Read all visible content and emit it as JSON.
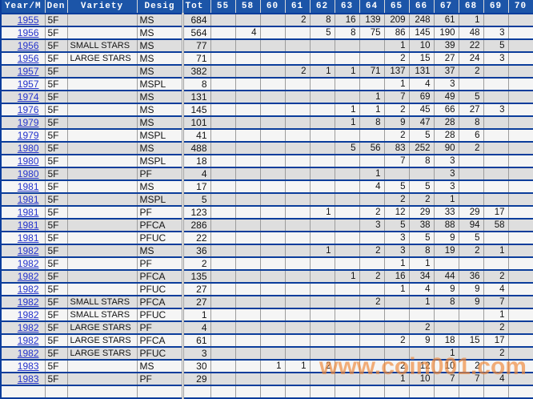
{
  "watermark": "www.coin001.com",
  "colors": {
    "header_bg": "#1C55A8",
    "separator": "#0B3D9B",
    "row_gray": "#DEDEDE",
    "row_white": "#F5F5F5",
    "grid_gray": "#9C9C9C",
    "link_blue": "#2433CC",
    "watermark_orange": "#F08A3C"
  },
  "table": {
    "columns": [
      "Year/M",
      "Den",
      "Variety",
      "Desig",
      "Tot",
      "55",
      "58",
      "60",
      "61",
      "62",
      "63",
      "64",
      "65",
      "66",
      "67",
      "68",
      "69",
      "70"
    ],
    "grade_columns": [
      "55",
      "58",
      "60",
      "61",
      "62",
      "63",
      "64",
      "65",
      "66",
      "67",
      "68",
      "69",
      "70"
    ],
    "rows": [
      {
        "year": "1955",
        "den": "5F",
        "variety": "",
        "desig": "MS",
        "tot": "684",
        "grades": {
          "61": "2",
          "62": "8",
          "63": "16",
          "64": "139",
          "65": "209",
          "66": "248",
          "67": "61",
          "68": "1"
        }
      },
      {
        "year": "1956",
        "den": "5F",
        "variety": "",
        "desig": "MS",
        "tot": "564",
        "grades": {
          "58": "4",
          "62": "5",
          "63": "8",
          "64": "75",
          "65": "86",
          "66": "145",
          "67": "190",
          "68": "48",
          "69": "3"
        }
      },
      {
        "year": "1956",
        "den": "5F",
        "variety": "SMALL STARS",
        "desig": "MS",
        "tot": "77",
        "grades": {
          "65": "1",
          "66": "10",
          "67": "39",
          "68": "22",
          "69": "5"
        }
      },
      {
        "year": "1956",
        "den": "5F",
        "variety": "LARGE STARS",
        "desig": "MS",
        "tot": "71",
        "grades": {
          "65": "2",
          "66": "15",
          "67": "27",
          "68": "24",
          "69": "3"
        }
      },
      {
        "year": "1957",
        "den": "5F",
        "variety": "",
        "desig": "MS",
        "tot": "382",
        "grades": {
          "61": "2",
          "62": "1",
          "63": "1",
          "64": "71",
          "65": "137",
          "66": "131",
          "67": "37",
          "68": "2"
        }
      },
      {
        "year": "1957",
        "den": "5F",
        "variety": "",
        "desig": "MSPL",
        "tot": "8",
        "grades": {
          "65": "1",
          "66": "4",
          "67": "3"
        }
      },
      {
        "year": "1974",
        "den": "5F",
        "variety": "",
        "desig": "MS",
        "tot": "131",
        "grades": {
          "64": "1",
          "65": "7",
          "66": "69",
          "67": "49",
          "68": "5"
        }
      },
      {
        "year": "1976",
        "den": "5F",
        "variety": "",
        "desig": "MS",
        "tot": "145",
        "grades": {
          "63": "1",
          "64": "1",
          "65": "2",
          "66": "45",
          "67": "66",
          "68": "27",
          "69": "3"
        }
      },
      {
        "year": "1979",
        "den": "5F",
        "variety": "",
        "desig": "MS",
        "tot": "101",
        "grades": {
          "63": "1",
          "64": "8",
          "65": "9",
          "66": "47",
          "67": "28",
          "68": "8"
        }
      },
      {
        "year": "1979",
        "den": "5F",
        "variety": "",
        "desig": "MSPL",
        "tot": "41",
        "grades": {
          "65": "2",
          "66": "5",
          "67": "28",
          "68": "6"
        }
      },
      {
        "year": "1980",
        "den": "5F",
        "variety": "",
        "desig": "MS",
        "tot": "488",
        "grades": {
          "63": "5",
          "64": "56",
          "65": "83",
          "66": "252",
          "67": "90",
          "68": "2"
        }
      },
      {
        "year": "1980",
        "den": "5F",
        "variety": "",
        "desig": "MSPL",
        "tot": "18",
        "grades": {
          "65": "7",
          "66": "8",
          "67": "3"
        }
      },
      {
        "year": "1980",
        "den": "5F",
        "variety": "",
        "desig": "PF",
        "tot": "4",
        "grades": {
          "64": "1",
          "67": "3"
        }
      },
      {
        "year": "1981",
        "den": "5F",
        "variety": "",
        "desig": "MS",
        "tot": "17",
        "grades": {
          "64": "4",
          "65": "5",
          "66": "5",
          "67": "3"
        }
      },
      {
        "year": "1981",
        "den": "5F",
        "variety": "",
        "desig": "MSPL",
        "tot": "5",
        "grades": {
          "65": "2",
          "66": "2",
          "67": "1"
        }
      },
      {
        "year": "1981",
        "den": "5F",
        "variety": "",
        "desig": "PF",
        "tot": "123",
        "grades": {
          "62": "1",
          "64": "2",
          "65": "12",
          "66": "29",
          "67": "33",
          "68": "29",
          "69": "17"
        }
      },
      {
        "year": "1981",
        "den": "5F",
        "variety": "",
        "desig": "PFCA",
        "tot": "286",
        "grades": {
          "64": "3",
          "65": "5",
          "66": "38",
          "67": "88",
          "68": "94",
          "69": "58"
        }
      },
      {
        "year": "1981",
        "den": "5F",
        "variety": "",
        "desig": "PFUC",
        "tot": "22",
        "grades": {
          "65": "3",
          "66": "5",
          "67": "9",
          "68": "5"
        }
      },
      {
        "year": "1982",
        "den": "5F",
        "variety": "",
        "desig": "MS",
        "tot": "36",
        "grades": {
          "62": "1",
          "64": "2",
          "65": "3",
          "66": "8",
          "67": "19",
          "68": "2",
          "69": "1"
        }
      },
      {
        "year": "1982",
        "den": "5F",
        "variety": "",
        "desig": "PF",
        "tot": "2",
        "grades": {
          "65": "1",
          "66": "1"
        }
      },
      {
        "year": "1982",
        "den": "5F",
        "variety": "",
        "desig": "PFCA",
        "tot": "135",
        "grades": {
          "63": "1",
          "64": "2",
          "65": "16",
          "66": "34",
          "67": "44",
          "68": "36",
          "69": "2"
        }
      },
      {
        "year": "1982",
        "den": "5F",
        "variety": "",
        "desig": "PFUC",
        "tot": "27",
        "grades": {
          "65": "1",
          "66": "4",
          "67": "9",
          "68": "9",
          "69": "4"
        }
      },
      {
        "year": "1982",
        "den": "5F",
        "variety": "SMALL STARS",
        "desig": "PFCA",
        "tot": "27",
        "grades": {
          "64": "2",
          "66": "1",
          "67": "8",
          "68": "9",
          "69": "7"
        }
      },
      {
        "year": "1982",
        "den": "5F",
        "variety": "SMALL STARS",
        "desig": "PFUC",
        "tot": "1",
        "grades": {
          "69": "1"
        }
      },
      {
        "year": "1982",
        "den": "5F",
        "variety": "LARGE STARS",
        "desig": "PF",
        "tot": "4",
        "grades": {
          "66": "2",
          "69": "2"
        }
      },
      {
        "year": "1982",
        "den": "5F",
        "variety": "LARGE STARS",
        "desig": "PFCA",
        "tot": "61",
        "grades": {
          "65": "2",
          "66": "9",
          "67": "18",
          "68": "15",
          "69": "17"
        }
      },
      {
        "year": "1982",
        "den": "5F",
        "variety": "LARGE STARS",
        "desig": "PFUC",
        "tot": "3",
        "grades": {
          "67": "1",
          "69": "2"
        }
      },
      {
        "year": "1983",
        "den": "5F",
        "variety": "",
        "desig": "MS",
        "tot": "30",
        "grades": {
          "60": "1",
          "61": "1",
          "62": "2",
          "65": "2",
          "66": "12",
          "67": "10",
          "68": "2"
        }
      },
      {
        "year": "1983",
        "den": "5F",
        "variety": "",
        "desig": "PF",
        "tot": "29",
        "grades": {
          "65": "1",
          "66": "10",
          "67": "7",
          "68": "7",
          "69": "4"
        }
      }
    ]
  }
}
